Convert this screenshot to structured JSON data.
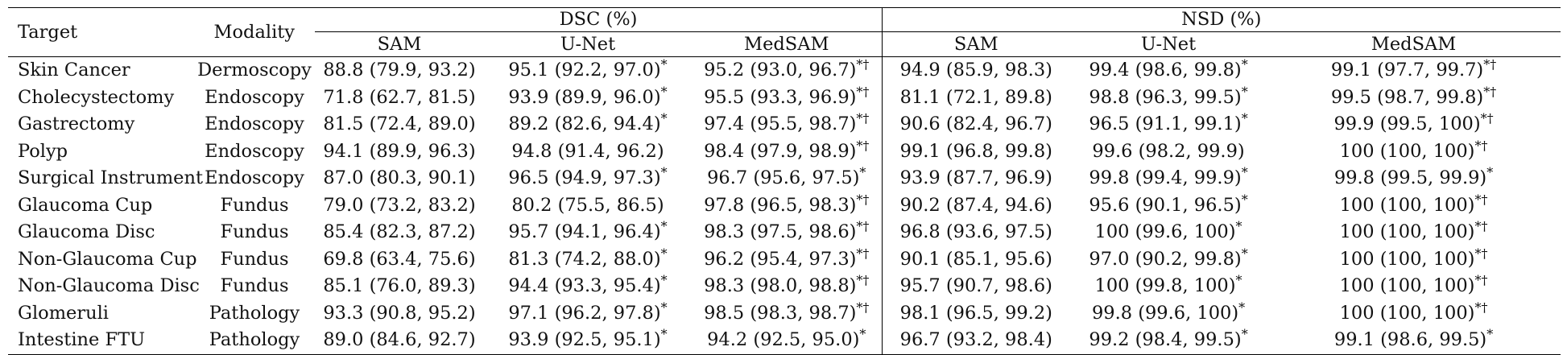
{
  "header": {
    "target": "Target",
    "modality": "Modality",
    "dsc": "DSC (%)",
    "nsd": "NSD (%)",
    "methods": [
      "SAM",
      "U-Net",
      "MedSAM"
    ]
  },
  "rows": [
    {
      "target": "Skin Cancer",
      "modality": "Dermoscopy",
      "dsc": [
        {
          "v": "88.8 (79.9, 93.2)",
          "m": ""
        },
        {
          "v": "95.1 (92.2, 97.0)",
          "m": "*"
        },
        {
          "v": "95.2 (93.0, 96.7)",
          "m": "*†"
        }
      ],
      "nsd": [
        {
          "v": "94.9 (85.9, 98.3)",
          "m": ""
        },
        {
          "v": "99.4 (98.6, 99.8)",
          "m": "*"
        },
        {
          "v": "99.1 (97.7, 99.7)",
          "m": "*†"
        }
      ]
    },
    {
      "target": "Cholecystectomy",
      "modality": "Endoscopy",
      "dsc": [
        {
          "v": "71.8 (62.7, 81.5)",
          "m": ""
        },
        {
          "v": "93.9 (89.9, 96.0)",
          "m": "*"
        },
        {
          "v": "95.5 (93.3, 96.9)",
          "m": "*†"
        }
      ],
      "nsd": [
        {
          "v": "81.1 (72.1, 89.8)",
          "m": ""
        },
        {
          "v": "98.8 (96.3, 99.5)",
          "m": "*"
        },
        {
          "v": "99.5 (98.7, 99.8)",
          "m": "*†"
        }
      ]
    },
    {
      "target": "Gastrectomy",
      "modality": "Endoscopy",
      "dsc": [
        {
          "v": "81.5 (72.4, 89.0)",
          "m": ""
        },
        {
          "v": "89.2 (82.6, 94.4)",
          "m": "*"
        },
        {
          "v": "97.4 (95.5, 98.7)",
          "m": "*†"
        }
      ],
      "nsd": [
        {
          "v": "90.6 (82.4, 96.7)",
          "m": ""
        },
        {
          "v": "96.5 (91.1, 99.1)",
          "m": "*"
        },
        {
          "v": "99.9 (99.5, 100)",
          "m": "*†"
        }
      ]
    },
    {
      "target": "Polyp",
      "modality": "Endoscopy",
      "dsc": [
        {
          "v": "94.1 (89.9, 96.3)",
          "m": ""
        },
        {
          "v": "94.8 (91.4, 96.2)",
          "m": ""
        },
        {
          "v": "98.4 (97.9, 98.9)",
          "m": "*†"
        }
      ],
      "nsd": [
        {
          "v": "99.1 (96.8, 99.8)",
          "m": ""
        },
        {
          "v": "99.6 (98.2, 99.9)",
          "m": ""
        },
        {
          "v": "100 (100, 100)",
          "m": "*†"
        }
      ]
    },
    {
      "target": "Surgical Instrument",
      "modality": "Endoscopy",
      "dsc": [
        {
          "v": "87.0 (80.3, 90.1)",
          "m": ""
        },
        {
          "v": "96.5 (94.9, 97.3)",
          "m": "*"
        },
        {
          "v": "96.7 (95.6, 97.5)",
          "m": "*"
        }
      ],
      "nsd": [
        {
          "v": "93.9 (87.7, 96.9)",
          "m": ""
        },
        {
          "v": "99.8 (99.4, 99.9)",
          "m": "*"
        },
        {
          "v": "99.8 (99.5, 99.9)",
          "m": "*"
        }
      ]
    },
    {
      "target": "Glaucoma Cup",
      "modality": "Fundus",
      "dsc": [
        {
          "v": "79.0 (73.2, 83.2)",
          "m": ""
        },
        {
          "v": "80.2 (75.5, 86.5)",
          "m": ""
        },
        {
          "v": "97.8 (96.5, 98.3)",
          "m": "*†"
        }
      ],
      "nsd": [
        {
          "v": "90.2 (87.4, 94.6)",
          "m": ""
        },
        {
          "v": "95.6 (90.1, 96.5)",
          "m": "*"
        },
        {
          "v": "100 (100, 100)",
          "m": "*†"
        }
      ]
    },
    {
      "target": "Glaucoma Disc",
      "modality": "Fundus",
      "dsc": [
        {
          "v": "85.4 (82.3, 87.2)",
          "m": ""
        },
        {
          "v": "95.7 (94.1, 96.4)",
          "m": "*"
        },
        {
          "v": "98.3 (97.5, 98.6)",
          "m": "*†"
        }
      ],
      "nsd": [
        {
          "v": "96.8 (93.6, 97.5)",
          "m": ""
        },
        {
          "v": "100 (99.6, 100)",
          "m": "*"
        },
        {
          "v": "100 (100, 100)",
          "m": "*†"
        }
      ]
    },
    {
      "target": "Non-Glaucoma Cup",
      "modality": "Fundus",
      "dsc": [
        {
          "v": "69.8 (63.4, 75.6)",
          "m": ""
        },
        {
          "v": "81.3 (74.2, 88.0)",
          "m": "*"
        },
        {
          "v": "96.2 (95.4, 97.3)",
          "m": "*†"
        }
      ],
      "nsd": [
        {
          "v": "90.1 (85.1, 95.6)",
          "m": ""
        },
        {
          "v": "97.0 (90.2, 99.8)",
          "m": "*"
        },
        {
          "v": "100 (100, 100)",
          "m": "*†"
        }
      ]
    },
    {
      "target": "Non-Glaucoma Disc",
      "modality": "Fundus",
      "dsc": [
        {
          "v": "85.1 (76.0, 89.3)",
          "m": ""
        },
        {
          "v": "94.4 (93.3, 95.4)",
          "m": "*"
        },
        {
          "v": "98.3 (98.0, 98.8)",
          "m": "*†"
        }
      ],
      "nsd": [
        {
          "v": "95.7 (90.7, 98.6)",
          "m": ""
        },
        {
          "v": "100 (99.8, 100)",
          "m": "*"
        },
        {
          "v": "100 (100, 100)",
          "m": "*†"
        }
      ]
    },
    {
      "target": "Glomeruli",
      "modality": "Pathology",
      "dsc": [
        {
          "v": "93.3 (90.8, 95.2)",
          "m": ""
        },
        {
          "v": "97.1 (96.2, 97.8)",
          "m": "*"
        },
        {
          "v": "98.5 (98.3, 98.7)",
          "m": "*†"
        }
      ],
      "nsd": [
        {
          "v": "98.1 (96.5, 99.2)",
          "m": ""
        },
        {
          "v": "99.8 (99.6, 100)",
          "m": "*"
        },
        {
          "v": "100 (100, 100)",
          "m": "*†"
        }
      ]
    },
    {
      "target": "Intestine FTU",
      "modality": "Pathology",
      "dsc": [
        {
          "v": "89.0 (84.6, 92.7)",
          "m": ""
        },
        {
          "v": "93.9 (92.5, 95.1)",
          "m": "*"
        },
        {
          "v": "94.2 (92.5, 95.0)",
          "m": "*"
        }
      ],
      "nsd": [
        {
          "v": "96.7 (93.2, 98.4)",
          "m": ""
        },
        {
          "v": "99.2 (98.4, 99.5)",
          "m": "*"
        },
        {
          "v": "99.1 (98.6, 99.5)",
          "m": "*"
        }
      ]
    }
  ]
}
